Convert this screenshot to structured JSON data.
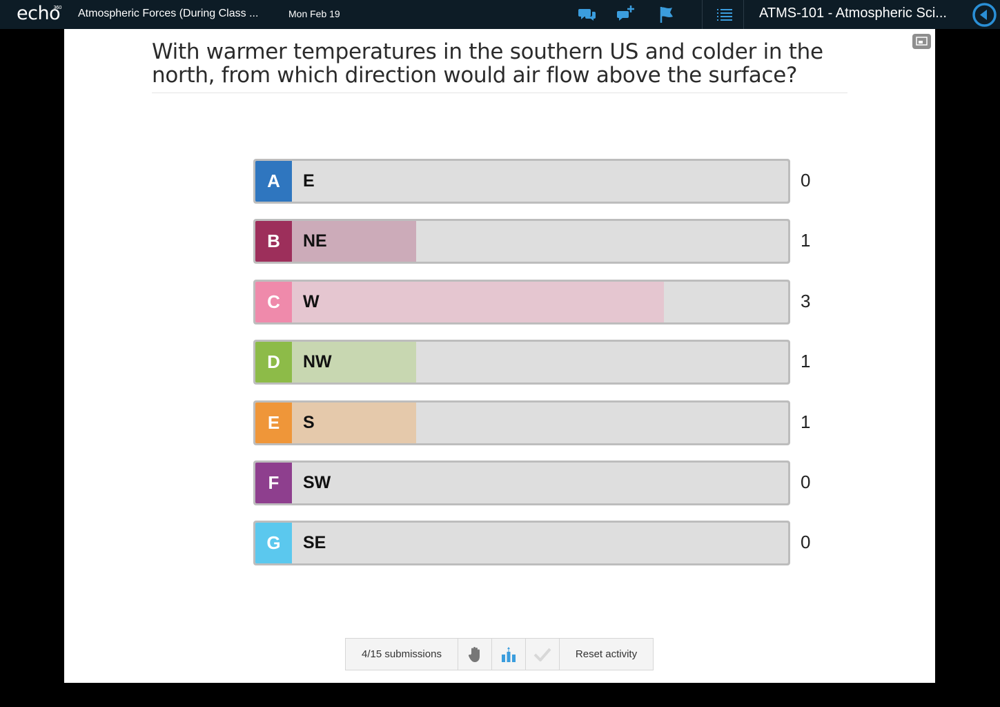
{
  "header": {
    "logo": "echo",
    "logo_sup": "360",
    "lecture_title": "Atmospheric Forces (During Class ...",
    "date": "Mon Feb 19",
    "course_title": "ATMS-101 - Atmospheric Sci...",
    "icons": [
      "discussion-icon",
      "add-question-icon",
      "flag-icon",
      "outline-icon",
      "back-icon"
    ],
    "accent": "#2a8fd6"
  },
  "question": "With warmer temperatures in the southern US and colder in the north, from which direction would air flow above the surface?",
  "results": {
    "max_count": 3,
    "options": [
      {
        "letter": "A",
        "label": "E",
        "count": 0,
        "color": "#2f76bf",
        "fill": "#a7c3e2"
      },
      {
        "letter": "B",
        "label": "NE",
        "count": 1,
        "color": "#9d2f5b",
        "fill": "#ccabb9"
      },
      {
        "letter": "C",
        "label": "W",
        "count": 3,
        "color": "#ef8aab",
        "fill": "#e5c6d0"
      },
      {
        "letter": "D",
        "label": "NW",
        "count": 1,
        "color": "#8dbb48",
        "fill": "#c8d7b1"
      },
      {
        "letter": "E",
        "label": "S",
        "count": 1,
        "color": "#ef9639",
        "fill": "#e5c9ab"
      },
      {
        "letter": "F",
        "label": "SW",
        "count": 0,
        "color": "#8e3f8e",
        "fill": "#c9a9c9"
      },
      {
        "letter": "G",
        "label": "SE",
        "count": 0,
        "color": "#5bc8ee",
        "fill": "#b3dff1"
      }
    ]
  },
  "toolbar": {
    "submissions": "4/15 submissions",
    "reset": "Reset activity",
    "icons": [
      "hand-icon",
      "bar-chart-icon",
      "checkmark-icon"
    ]
  }
}
